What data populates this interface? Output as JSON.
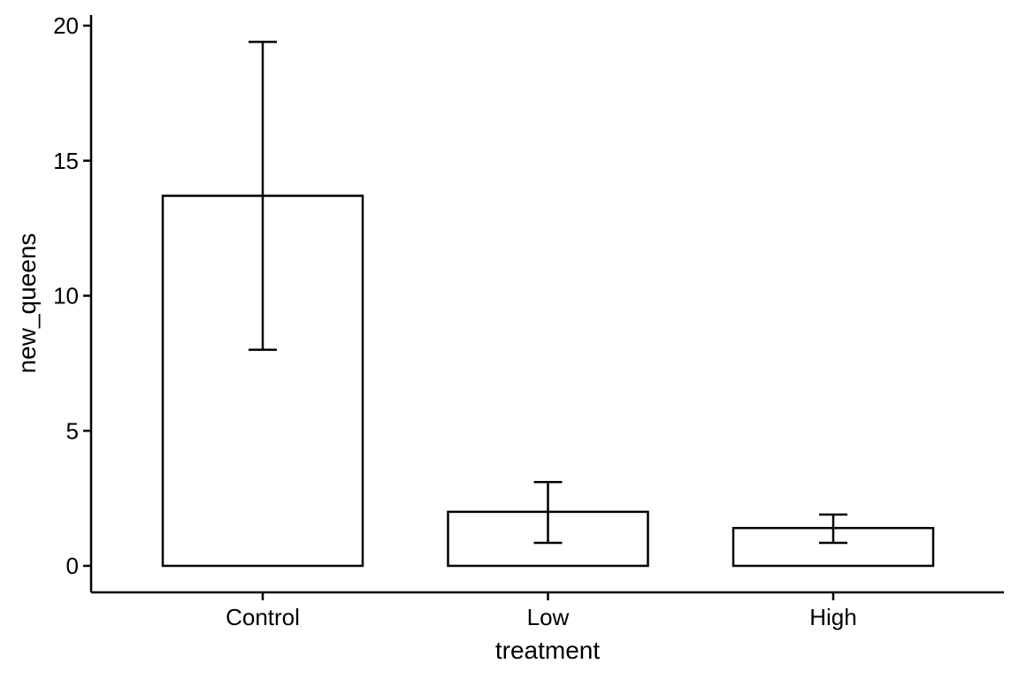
{
  "chart_data": {
    "type": "bar",
    "title": "",
    "xlabel": "treatment",
    "ylabel": "new_queens",
    "categories": [
      "Control",
      "Low",
      "High"
    ],
    "values": [
      13.7,
      2.0,
      1.4
    ],
    "error_bars": {
      "lower": [
        8.0,
        0.85,
        0.85
      ],
      "upper": [
        19.4,
        3.1,
        1.9
      ]
    },
    "ylim": [
      0,
      20
    ],
    "yticks": [
      0,
      5,
      10,
      15,
      20
    ],
    "ytick_labels": [
      "0",
      "5",
      "10",
      "15",
      "20"
    ],
    "grid": false,
    "legend": "none",
    "bar_fill": "#ffffff",
    "bar_stroke": "#000000"
  }
}
